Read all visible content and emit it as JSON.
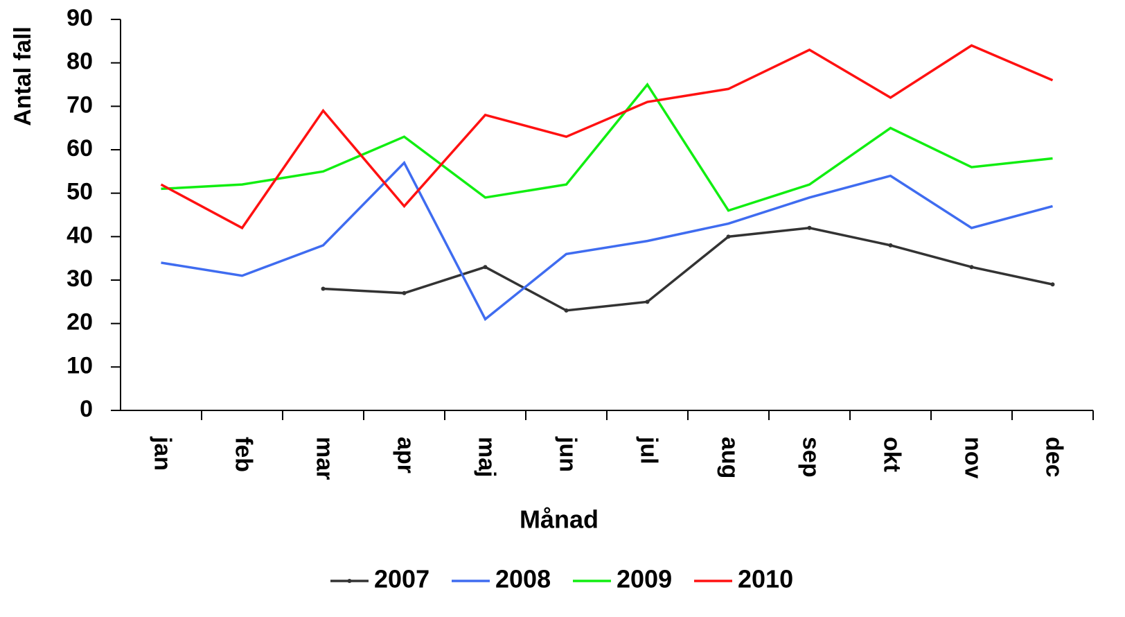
{
  "chart_data": {
    "type": "line",
    "y_label": "Antal fall",
    "x_label": "Månad",
    "categories": [
      "jan",
      "feb",
      "mar",
      "apr",
      "maj",
      "jun",
      "jul",
      "aug",
      "sep",
      "okt",
      "nov",
      "dec"
    ],
    "series": [
      {
        "name": "2007",
        "color": "#333333",
        "markers": true,
        "values": [
          null,
          null,
          28,
          27,
          33,
          23,
          25,
          40,
          42,
          38,
          33,
          29
        ]
      },
      {
        "name": "2008",
        "color": "#3f6cf0",
        "values": [
          34,
          31,
          38,
          57,
          21,
          36,
          39,
          43,
          49,
          54,
          42,
          47
        ]
      },
      {
        "name": "2009",
        "color": "#11ee11",
        "values": [
          51,
          52,
          55,
          63,
          49,
          52,
          75,
          46,
          52,
          65,
          56,
          58
        ]
      },
      {
        "name": "2010",
        "color": "#ff1111",
        "values": [
          52,
          42,
          69,
          47,
          68,
          63,
          71,
          74,
          83,
          72,
          84,
          76
        ]
      }
    ],
    "ylim": [
      0,
      90
    ],
    "yticks": [
      0,
      10,
      20,
      30,
      40,
      50,
      60,
      70,
      80,
      90
    ],
    "grid": false,
    "legend": "bottom"
  }
}
